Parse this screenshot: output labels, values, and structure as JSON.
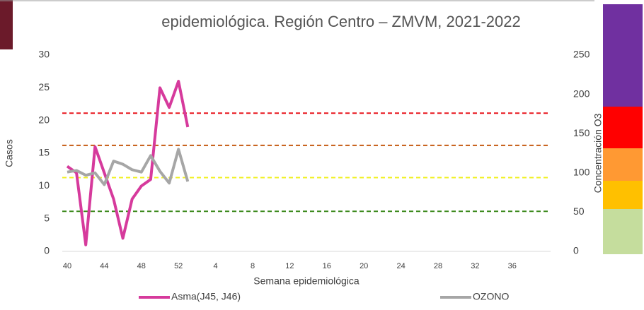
{
  "chart_data": {
    "type": "line",
    "title": "epidemiológica. Región Centro – ZMVM, 2021-2022",
    "x_label": "Semana epidemiológica",
    "y_label": "Casos",
    "y2_label": "Concentración O3",
    "categories": [
      40,
      null,
      null,
      null,
      44,
      null,
      null,
      null,
      48,
      null,
      null,
      null,
      52,
      null,
      null,
      null,
      4,
      null,
      null,
      null,
      8,
      null,
      null,
      null,
      12,
      null,
      null,
      null,
      16,
      null,
      null,
      null,
      20,
      null,
      null,
      null,
      24,
      null,
      null,
      null,
      28,
      null,
      null,
      null,
      32,
      null,
      null,
      null,
      36,
      null,
      null,
      null
    ],
    "ylim": [
      0,
      30
    ],
    "yticks": [
      0,
      5,
      10,
      15,
      20,
      25,
      30
    ],
    "y2lim": [
      0,
      250
    ],
    "y2ticks": [
      0,
      50,
      100,
      150,
      200,
      250
    ],
    "series": [
      {
        "name": "Asma(J45, J46)",
        "color": "#d63a9c",
        "values": [
          13,
          12,
          1,
          16,
          12,
          8,
          2,
          8,
          10,
          11,
          25,
          22,
          26,
          19,
          null,
          null,
          null,
          null,
          null,
          null,
          null,
          null,
          null,
          null,
          null,
          null,
          null,
          null,
          null,
          null,
          null,
          null,
          null,
          null,
          null,
          null,
          null,
          null,
          null,
          null,
          null,
          null,
          null,
          null,
          null,
          null,
          null,
          null,
          null,
          null,
          null,
          null
        ]
      },
      {
        "name": "OZONO",
        "color": "#a6a6a6",
        "axis": "y2",
        "values": [
          101,
          103,
          97,
          100,
          85,
          115,
          111,
          104,
          101,
          122,
          102,
          87,
          130,
          89,
          null,
          null,
          null,
          null,
          null,
          null,
          null,
          null,
          null,
          null,
          null,
          null,
          null,
          null,
          null,
          null,
          null,
          null,
          null,
          null,
          null,
          null,
          null,
          null,
          null,
          null,
          null,
          null,
          null,
          null,
          null,
          null,
          null,
          null,
          null,
          null,
          null,
          null
        ]
      }
    ],
    "thresholds": [
      {
        "value": 176,
        "color": "#e8141c"
      },
      {
        "value": 135,
        "color": "#c55a11"
      },
      {
        "value": 94,
        "color": "#f0f020"
      },
      {
        "value": 51,
        "color": "#3d8a1e"
      }
    ]
  }
}
